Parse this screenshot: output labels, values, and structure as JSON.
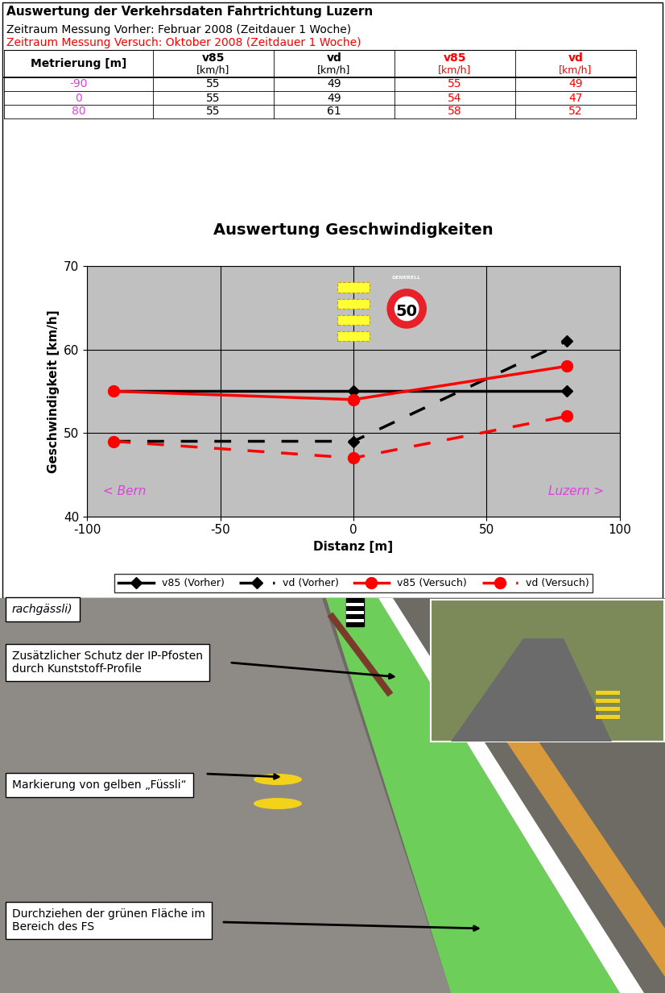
{
  "header": {
    "title": "Auswertung der Verkehrsdaten Fahrtrichtung Luzern",
    "period_before": "Zeitraum Messung Vorher: Februar 2008 (Zeitdauer 1 Woche)",
    "period_trial": "Zeitraum Messung Versuch: Oktober 2008 (Zeitdauer 1 Woche)"
  },
  "table": {
    "columns": [
      [
        "Metrierung [m]"
      ],
      [
        "v85",
        "[km/h]"
      ],
      [
        "vd",
        "[km/h]"
      ],
      [
        "v85",
        "[km/h]"
      ],
      [
        "vd",
        "[km/h]"
      ]
    ],
    "rows": [
      [
        -90,
        55,
        49,
        55,
        49
      ],
      [
        0,
        55,
        49,
        54,
        47
      ],
      [
        80,
        55,
        61,
        58,
        52
      ]
    ]
  },
  "chart_data": {
    "type": "line",
    "title": "Auswertung Geschwindigkeiten",
    "x_label": "Distanz [m]",
    "y_label": "Geschwindigkeit [km/h]",
    "x": [
      -90,
      0,
      80
    ],
    "series": [
      {
        "name": "v85 (Vorher)",
        "color": "#000000",
        "marker": "diamond",
        "line_style": "solid",
        "values": [
          55,
          55,
          55
        ]
      },
      {
        "name": "vd (Vorher)",
        "color": "#000000",
        "marker": "diamond",
        "line_style": "dashed",
        "values": [
          49,
          49,
          61
        ]
      },
      {
        "name": "v85 (Versuch)",
        "color": "#ff0000",
        "marker": "circle",
        "line_style": "solid",
        "values": [
          55,
          54,
          58
        ]
      },
      {
        "name": "vd (Versuch)",
        "color": "#ff0000",
        "marker": "circle",
        "line_style": "dashed",
        "values": [
          49,
          47,
          52
        ]
      }
    ],
    "xlim": [
      -100,
      100
    ],
    "xticks": [
      -100,
      -50,
      0,
      50,
      100
    ],
    "ylim": [
      40,
      70
    ],
    "yticks": [
      40,
      50,
      60,
      70
    ],
    "grid": true,
    "legend": "upper center",
    "annotations": [
      "< Bern",
      "Luzern >"
    ],
    "sign": {
      "text": "50",
      "label": "GENERELL"
    }
  },
  "photo": {
    "caption_fragment": "rachgässli)",
    "annotations": [
      [
        "Zusätzlicher Schutz der IP-Pfosten",
        "durch Kunststoff-Profile"
      ],
      [
        "Markierung von gelben „Füssli“"
      ],
      [
        "Durchziehen der grünen Fläche im",
        "Bereich des FS"
      ]
    ]
  }
}
